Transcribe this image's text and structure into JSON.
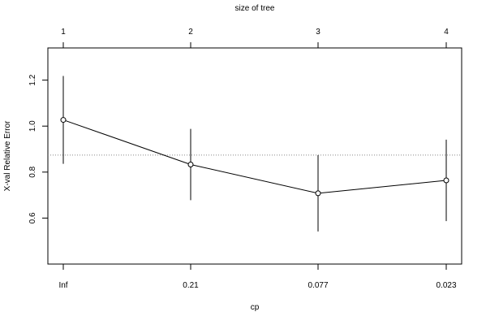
{
  "chart_data": {
    "type": "line",
    "title": "",
    "top_axis": {
      "label": "size of tree",
      "ticks": [
        "1",
        "2",
        "3",
        "4"
      ]
    },
    "xlabel": "cp",
    "ylabel": "X-val Relative Error",
    "categories": [
      "Inf",
      "0.21",
      "0.077",
      "0.023"
    ],
    "series": [
      {
        "values": [
          1.027,
          0.833,
          0.708,
          0.764
        ],
        "error_low": [
          0.836,
          0.678,
          0.542,
          0.587
        ],
        "error_high": [
          1.218,
          0.988,
          0.874,
          0.941
        ]
      }
    ],
    "reference_line": 0.874,
    "yticks": [
      "0.6",
      "0.8",
      "1.0",
      "1.2"
    ],
    "ylim": [
      0.4,
      1.34
    ],
    "grid": false
  }
}
